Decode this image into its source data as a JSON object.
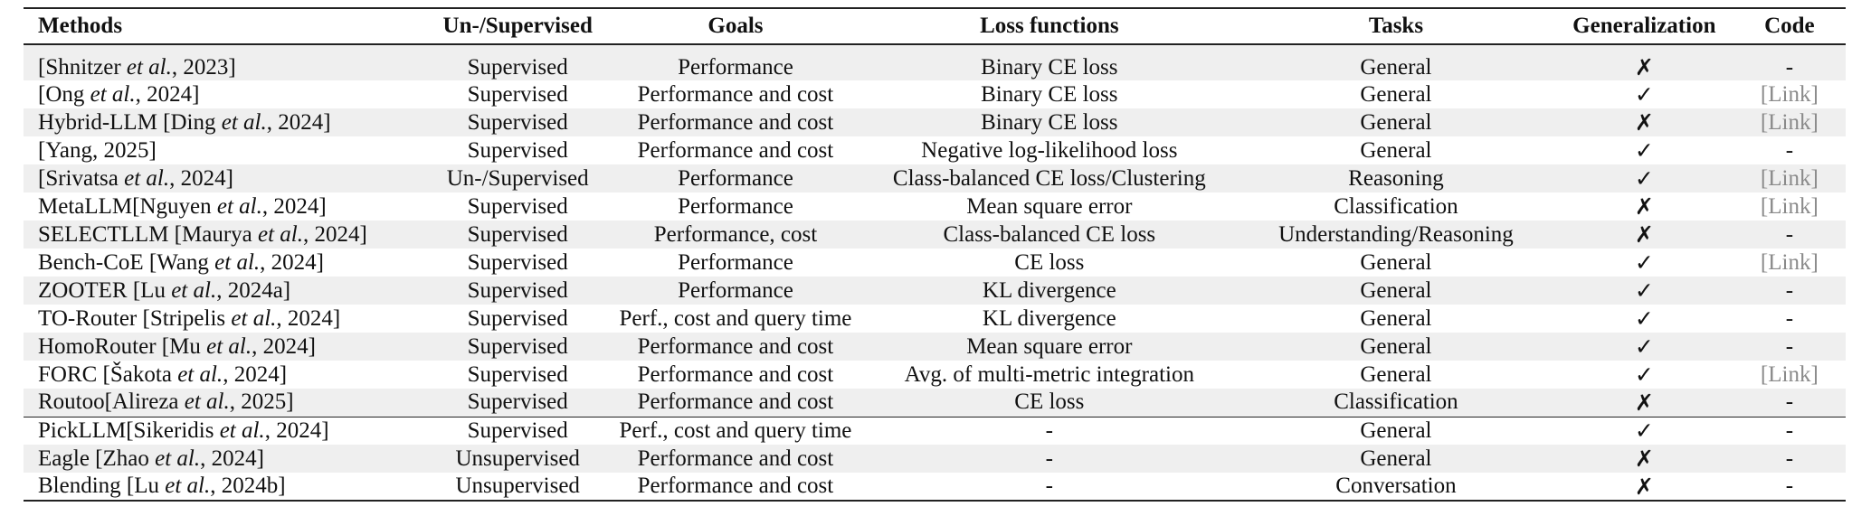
{
  "table": {
    "headers": [
      "Methods",
      "Un-/Supervised",
      "Goals",
      "Loss functions",
      "Tasks",
      "Generalization",
      "Code"
    ],
    "rows": [
      {
        "pre": "[Shnitzer ",
        "em": "et al.",
        "post": ", 2023]",
        "sup": "Supervised",
        "goals": "Performance",
        "loss": "Binary CE loss",
        "task": "General",
        "gen": "✗",
        "code": "-"
      },
      {
        "pre": "[Ong ",
        "em": "et al.",
        "post": ", 2024]",
        "sup": "Supervised",
        "goals": "Performance and cost",
        "loss": "Binary CE loss",
        "task": "General",
        "gen": "✓",
        "code": "[Link]"
      },
      {
        "pre": "Hybrid-LLM [Ding ",
        "em": "et al.",
        "post": ", 2024]",
        "sup": "Supervised",
        "goals": "Performance and cost",
        "loss": "Binary CE loss",
        "task": "General",
        "gen": "✗",
        "code": "[Link]"
      },
      {
        "pre": "[Yang, 2025]",
        "em": "",
        "post": "",
        "sup": "Supervised",
        "goals": "Performance and cost",
        "loss": "Negative log-likelihood loss",
        "task": "General",
        "gen": "✓",
        "code": "-"
      },
      {
        "pre": "[Srivatsa ",
        "em": "et al.",
        "post": ", 2024]",
        "sup": "Un-/Supervised",
        "goals": "Performance",
        "loss": "Class-balanced CE loss/Clustering",
        "task": "Reasoning",
        "gen": "✓",
        "code": "[Link]"
      },
      {
        "pre": "MetaLLM[Nguyen ",
        "em": "et al.",
        "post": ", 2024]",
        "sup": "Supervised",
        "goals": "Performance",
        "loss": "Mean square error",
        "task": "Classification",
        "gen": "✗",
        "code": "[Link]"
      },
      {
        "pre": "SELECTLLM [Maurya ",
        "em": "et al.",
        "post": ", 2024]",
        "sup": "Supervised",
        "goals": "Performance, cost",
        "loss": "Class-balanced CE loss",
        "task": "Understanding/Reasoning",
        "gen": "✗",
        "code": "-"
      },
      {
        "pre": "Bench-CoE [Wang ",
        "em": "et al.",
        "post": ", 2024]",
        "sup": "Supervised",
        "goals": "Performance",
        "loss": "CE loss",
        "task": "General",
        "gen": "✓",
        "code": "[Link]"
      },
      {
        "pre": "ZOOTER [Lu ",
        "em": "et al.",
        "post": ", 2024a]",
        "sup": "Supervised",
        "goals": "Performance",
        "loss": "KL divergence",
        "task": "General",
        "gen": "✓",
        "code": "-"
      },
      {
        "pre": "TO-Router [Stripelis ",
        "em": "et al.",
        "post": ", 2024]",
        "sup": "Supervised",
        "goals": "Perf., cost and query time",
        "loss": "KL divergence",
        "task": "General",
        "gen": "✓",
        "code": "-"
      },
      {
        "pre": "HomoRouter [Mu ",
        "em": "et al.",
        "post": ", 2024]",
        "sup": "Supervised",
        "goals": "Performance and cost",
        "loss": "Mean square error",
        "task": "General",
        "gen": "✓",
        "code": "-"
      },
      {
        "pre": "FORC [Šakota ",
        "em": "et al.",
        "post": ", 2024]",
        "sup": "Supervised",
        "goals": "Performance and cost",
        "loss": "Avg. of multi-metric integration",
        "task": "General",
        "gen": "✓",
        "code": "[Link]"
      },
      {
        "pre": "Routoo[Alireza ",
        "em": "et al.",
        "post": ", 2025]",
        "sup": "Supervised",
        "goals": "Performance and cost",
        "loss": "CE loss",
        "task": "Classification",
        "gen": "✗",
        "code": "-"
      },
      {
        "pre": "PickLLM[Sikeridis ",
        "em": "et al.",
        "post": ", 2024]",
        "sup": "Supervised",
        "goals": "Perf., cost and query time",
        "loss": "-",
        "task": "General",
        "gen": "✓",
        "code": "-"
      },
      {
        "pre": "Eagle [Zhao ",
        "em": "et al.",
        "post": ", 2024]",
        "sup": "Unsupervised",
        "goals": "Performance and cost",
        "loss": "-",
        "task": "General",
        "gen": "✗",
        "code": "-"
      },
      {
        "pre": "Blending [Lu ",
        "em": "et al.",
        "post": ", 2024b]",
        "sup": "Unsupervised",
        "goals": "Performance and cost",
        "loss": "-",
        "task": "Conversation",
        "gen": "✗",
        "code": "-"
      }
    ]
  }
}
